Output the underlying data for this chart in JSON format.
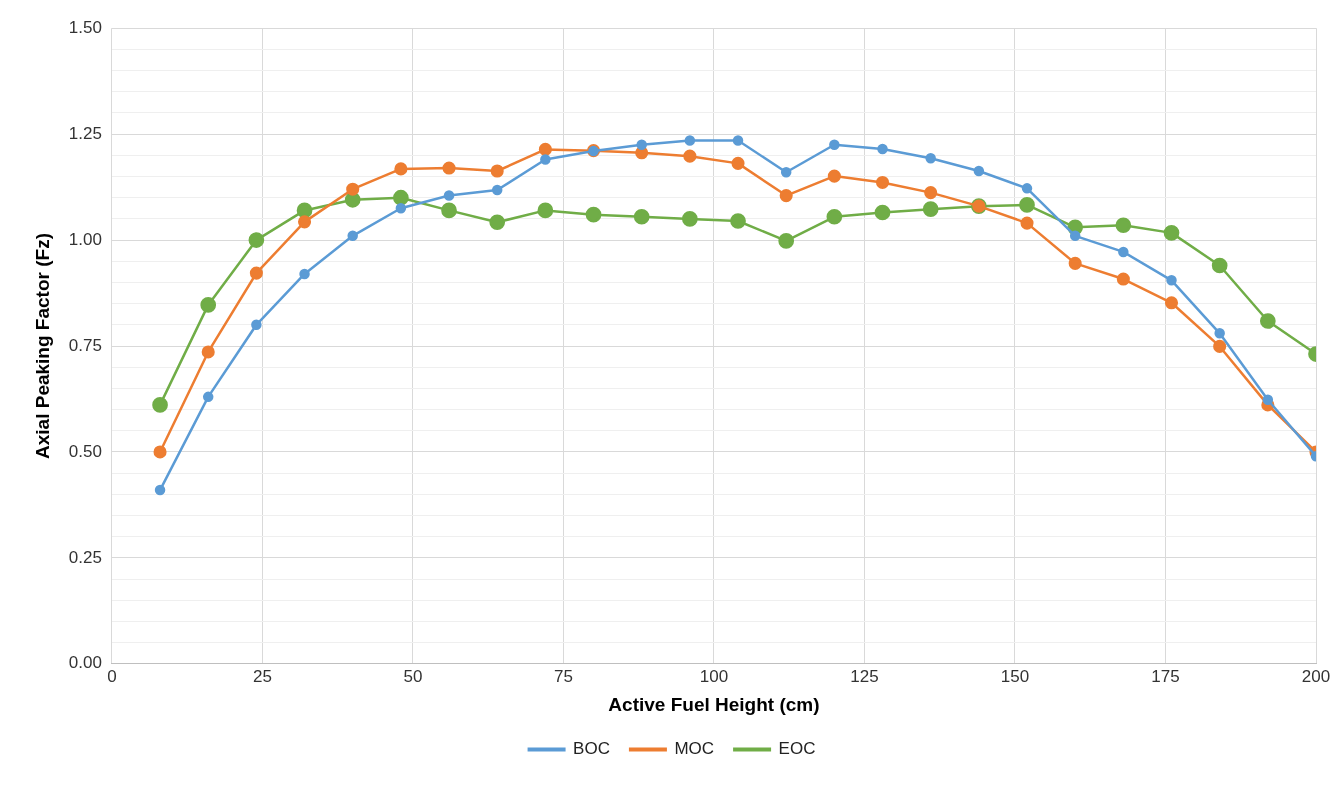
{
  "chart_data": {
    "type": "line",
    "xlabel": "Active Fuel Height (cm)",
    "ylabel": "Axial Peaking Factor (Fz)",
    "x": [
      8,
      16,
      24,
      32,
      40,
      48,
      56,
      64,
      72,
      80,
      88,
      96,
      104,
      112,
      120,
      128,
      136,
      144,
      152,
      160,
      168,
      176,
      184,
      192,
      200
    ],
    "series": [
      {
        "name": "BOC",
        "color": "#5b9bd5",
        "values": [
          0.41,
          0.63,
          0.8,
          0.92,
          1.01,
          1.075,
          1.105,
          1.118,
          1.19,
          1.21,
          1.225,
          1.235,
          1.235,
          1.16,
          1.225,
          1.215,
          1.193,
          1.163,
          1.122,
          1.01,
          0.972,
          0.905,
          0.78,
          0.623,
          0.49
        ]
      },
      {
        "name": "MOC",
        "color": "#ed7d31",
        "values": [
          0.5,
          0.736,
          0.922,
          1.043,
          1.12,
          1.168,
          1.17,
          1.163,
          1.214,
          1.211,
          1.206,
          1.198,
          1.181,
          1.105,
          1.151,
          1.136,
          1.112,
          1.08,
          1.04,
          0.945,
          0.908,
          0.852,
          0.749,
          0.611,
          0.5
        ]
      },
      {
        "name": "EOC",
        "color": "#70ad47",
        "values": [
          0.611,
          0.847,
          1.0,
          1.07,
          1.095,
          1.1,
          1.07,
          1.042,
          1.07,
          1.06,
          1.055,
          1.05,
          1.045,
          0.998,
          1.055,
          1.065,
          1.073,
          1.08,
          1.083,
          1.03,
          1.035,
          1.017,
          0.94,
          0.809,
          0.731
        ]
      }
    ],
    "xlim": [
      0,
      200
    ],
    "xticks": [
      0,
      25,
      50,
      75,
      100,
      125,
      150,
      175,
      200
    ],
    "ylim": [
      0,
      1.5
    ],
    "yticks": [
      {
        "value": 0,
        "label": "0.00"
      },
      {
        "value": 0.05,
        "label": null
      },
      {
        "value": 0.1,
        "label": null
      },
      {
        "value": 0.15,
        "label": null
      },
      {
        "value": 0.2,
        "label": null
      },
      {
        "value": 0.25,
        "label": "0.25"
      },
      {
        "value": 0.3,
        "label": null
      },
      {
        "value": 0.35,
        "label": null
      },
      {
        "value": 0.4,
        "label": null
      },
      {
        "value": 0.45,
        "label": null
      },
      {
        "value": 0.5,
        "label": "0.50"
      },
      {
        "value": 0.55,
        "label": null
      },
      {
        "value": 0.6,
        "label": null
      },
      {
        "value": 0.65,
        "label": null
      },
      {
        "value": 0.7,
        "label": null
      },
      {
        "value": 0.75,
        "label": "0.75"
      },
      {
        "value": 0.8,
        "label": null
      },
      {
        "value": 0.85,
        "label": null
      },
      {
        "value": 0.9,
        "label": null
      },
      {
        "value": 0.95,
        "label": null
      },
      {
        "value": 1.0,
        "label": "1.00"
      },
      {
        "value": 1.05,
        "label": null
      },
      {
        "value": 1.1,
        "label": null
      },
      {
        "value": 1.15,
        "label": null
      },
      {
        "value": 1.2,
        "label": null
      },
      {
        "value": 1.25,
        "label": "1.25"
      },
      {
        "value": 1.3,
        "label": null
      },
      {
        "value": 1.35,
        "label": null
      },
      {
        "value": 1.4,
        "label": null
      },
      {
        "value": 1.45,
        "label": null
      },
      {
        "value": 1.5,
        "label": "1.50"
      }
    ],
    "grid": true,
    "legend": "bottom",
    "marker": "circle",
    "line_style": "solid"
  }
}
